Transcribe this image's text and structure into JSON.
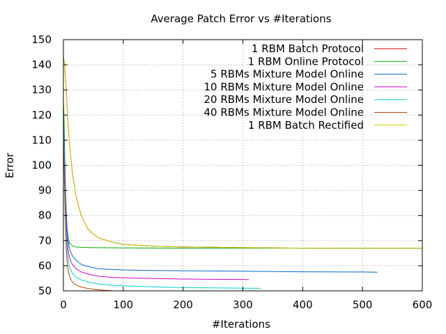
{
  "chart_data": {
    "type": "line",
    "title": "Average Patch Error vs #Iterations",
    "xlabel": "#Iterations",
    "ylabel": "Error",
    "xlim": [
      0,
      600
    ],
    "ylim": [
      50,
      150
    ],
    "xticks": [
      0,
      100,
      200,
      300,
      400,
      500,
      600
    ],
    "yticks": [
      50,
      60,
      70,
      80,
      90,
      100,
      110,
      120,
      130,
      140,
      150
    ],
    "grid": true,
    "legend_position": "top-right",
    "series": [
      {
        "name": "1 RBM Batch Protocol",
        "color": "#cc0000",
        "x": [
          0,
          2,
          4,
          6,
          8,
          10,
          12,
          15,
          20,
          25,
          30,
          40,
          50,
          60,
          80,
          100,
          150,
          200,
          300,
          400,
          500,
          600
        ],
        "y": [
          143,
          140,
          133,
          124,
          115,
          109,
          104,
          97,
          89,
          84,
          80,
          75,
          72.5,
          71,
          69.5,
          68.5,
          67.8,
          67.5,
          67.2,
          67,
          67,
          67
        ]
      },
      {
        "name": "1 RBM Online Protocol",
        "color": "#00aa00",
        "x": [
          0,
          1,
          2,
          3,
          4,
          5,
          6,
          8,
          10,
          15,
          20,
          30,
          50,
          100,
          200,
          300,
          400,
          500,
          600
        ],
        "y": [
          126,
          118,
          106,
          95,
          86,
          80,
          75,
          71,
          69,
          68,
          67.5,
          67.3,
          67.2,
          67.1,
          67,
          67,
          67,
          67,
          67
        ]
      },
      {
        "name": "5 RBMs Mixture Model Online",
        "color": "#0066cc",
        "x": [
          0,
          1,
          2,
          3,
          4,
          5,
          6,
          8,
          10,
          12,
          15,
          20,
          30,
          40,
          50,
          60,
          80,
          100,
          150,
          200,
          300,
          400,
          500,
          525
        ],
        "y": [
          120,
          112,
          103,
          94,
          86,
          80,
          75,
          70,
          67,
          65.5,
          64,
          62.5,
          60.5,
          59.8,
          59.2,
          58.8,
          58.5,
          58.3,
          58.1,
          58,
          57.8,
          57.6,
          57.5,
          57.4
        ]
      },
      {
        "name": "10 RBMs Mixture Model Online",
        "color": "#cc00cc",
        "x": [
          0,
          1,
          2,
          3,
          4,
          5,
          6,
          8,
          10,
          12,
          15,
          20,
          30,
          40,
          50,
          60,
          80,
          100,
          150,
          200,
          250,
          310
        ],
        "y": [
          117,
          109,
          99,
          90,
          82,
          76,
          71,
          66,
          63.5,
          62,
          60.5,
          59,
          57.5,
          56.8,
          56.2,
          55.8,
          55.4,
          55.2,
          54.9,
          54.7,
          54.6,
          54.5
        ]
      },
      {
        "name": "20 RBMs Mixture Model Online",
        "color": "#00cccc",
        "x": [
          0,
          1,
          2,
          3,
          4,
          5,
          6,
          8,
          10,
          12,
          15,
          20,
          30,
          40,
          50,
          60,
          80,
          100,
          150,
          200,
          250,
          330
        ],
        "y": [
          115,
          106,
          96,
          86,
          78,
          72,
          67,
          62.5,
          60,
          58.5,
          57,
          55.7,
          54.3,
          53.6,
          53.1,
          52.7,
          52.3,
          52,
          51.6,
          51.3,
          51.2,
          51
        ]
      },
      {
        "name": "40 RBMs Mixture Model Online",
        "color": "#b04000",
        "x": [
          0,
          1,
          2,
          3,
          4,
          5,
          6,
          8,
          10,
          12,
          15,
          20,
          25,
          30,
          40,
          50,
          60,
          70,
          80
        ],
        "y": [
          111,
          101,
          90,
          80,
          72,
          66,
          62,
          58,
          56,
          54.8,
          53.5,
          52.5,
          51.9,
          51.5,
          51,
          50.6,
          50.4,
          50.2,
          50.1
        ]
      },
      {
        "name": "1 RBM Batch Rectified",
        "color": "#c8c800",
        "x": [
          0,
          2,
          4,
          6,
          8,
          10,
          12,
          15,
          20,
          25,
          30,
          40,
          50,
          60,
          80,
          100,
          150,
          200,
          300,
          400,
          500,
          600
        ],
        "y": [
          142.5,
          140,
          133,
          124,
          115,
          109,
          104,
          97,
          89,
          84,
          80,
          75,
          72.5,
          71,
          69.5,
          68.5,
          67.8,
          67.5,
          67.2,
          67,
          67,
          67
        ]
      }
    ]
  }
}
